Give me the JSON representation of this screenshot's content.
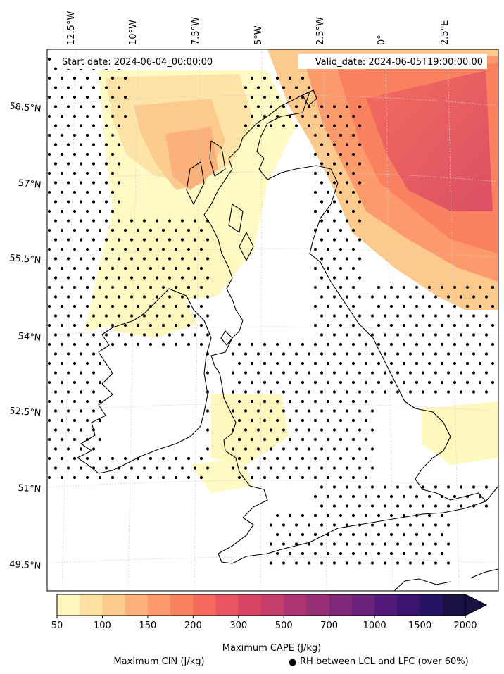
{
  "map": {
    "start_date": "Start date: 2024-06-04_00:00:00",
    "valid_date": "Valid_date: 2024-06-05T19:00:00.00",
    "lon_labels": [
      "12.5°W",
      "10°W",
      "7.5°W",
      "5°W",
      "2.5°W",
      "0°",
      "2.5°E"
    ],
    "lat_labels": [
      "58.5°N",
      "57°N",
      "55.5°N",
      "54°N",
      "52.5°N",
      "51°N",
      "49.5°N"
    ]
  },
  "colorbar": {
    "title": "Maximum CAPE (J/kg)",
    "ticks": [
      "50",
      "100",
      "150",
      "200",
      "300",
      "500",
      "700",
      "1000",
      "1500",
      "2000"
    ],
    "colors": [
      "#fff8be",
      "#fde1a3",
      "#fdca8e",
      "#fdb17a",
      "#fd9a6b",
      "#fa8160",
      "#f4695e",
      "#e85462",
      "#d74565",
      "#c43d6c",
      "#ad3672",
      "#962f75",
      "#7f2879",
      "#69217a",
      "#521a79",
      "#3b1470",
      "#261362",
      "#1a1044"
    ],
    "extend_color": "#1a1044"
  },
  "legend": {
    "cin_label": "Maximum CIN (J/kg)",
    "cin_color": "#ff0000",
    "rh_marker": "●",
    "rh_label": "RH between LCL and LFC (over 60%)"
  }
}
